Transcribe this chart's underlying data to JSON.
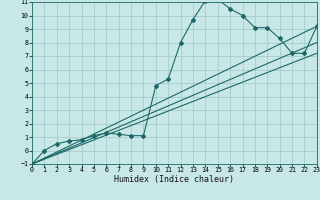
{
  "xlabel": "Humidex (Indice chaleur)",
  "bg_color": "#c8e8e8",
  "grid_color": "#a8cccc",
  "line_color": "#1e6868",
  "xlim": [
    0,
    23
  ],
  "ylim": [
    -1,
    11
  ],
  "xticks": [
    0,
    1,
    2,
    3,
    4,
    5,
    6,
    7,
    8,
    9,
    10,
    11,
    12,
    13,
    14,
    15,
    16,
    17,
    18,
    19,
    20,
    21,
    22,
    23
  ],
  "yticks": [
    -1,
    0,
    1,
    2,
    3,
    4,
    5,
    6,
    7,
    8,
    9,
    10,
    11
  ],
  "main_x": [
    0,
    1,
    2,
    3,
    4,
    5,
    6,
    7,
    8,
    9,
    10,
    11,
    12,
    13,
    14,
    15,
    16,
    17,
    18,
    19,
    20,
    21,
    22,
    23
  ],
  "main_y": [
    -1.0,
    0.0,
    0.5,
    0.7,
    0.8,
    1.1,
    1.3,
    1.2,
    1.1,
    1.1,
    4.8,
    5.3,
    8.0,
    9.7,
    11.1,
    11.2,
    10.5,
    10.0,
    9.1,
    9.1,
    8.3,
    7.2,
    7.2,
    9.2
  ],
  "straight_lines": [
    {
      "x": [
        0,
        23
      ],
      "y": [
        -1.0,
        9.2
      ]
    },
    {
      "x": [
        0,
        23
      ],
      "y": [
        -1.0,
        8.0
      ]
    },
    {
      "x": [
        0,
        23
      ],
      "y": [
        -1.0,
        7.2
      ]
    }
  ]
}
